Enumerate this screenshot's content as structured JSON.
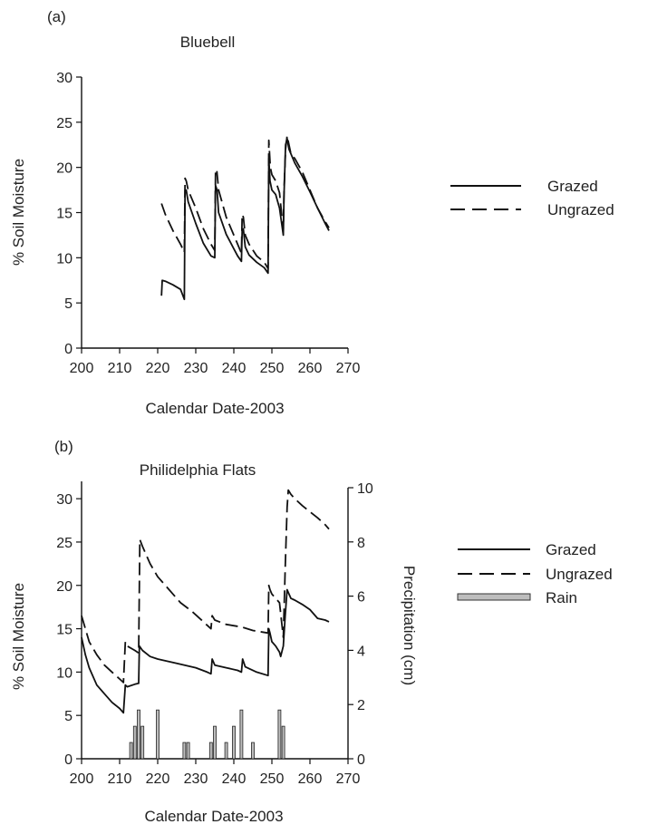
{
  "chart_data": [
    {
      "type": "line",
      "panel": "(a)",
      "title": "Bluebell",
      "xlabel": "Calendar Date-2003",
      "ylabel": "% Soil Moisture",
      "xlim": [
        200,
        270
      ],
      "ylim": [
        0,
        30
      ],
      "xticks": [
        200,
        210,
        220,
        230,
        240,
        250,
        260,
        270
      ],
      "yticks": [
        0,
        5,
        10,
        15,
        20,
        25,
        30
      ],
      "legend_position": "right",
      "grid": false,
      "series": [
        {
          "name": "Grazed",
          "style": "solid",
          "x": [
            221,
            221.2,
            222,
            224,
            226,
            227,
            227.2,
            227.5,
            228,
            230,
            232,
            234,
            235,
            235.2,
            235.6,
            236,
            238,
            240,
            241,
            242,
            242.2,
            242.5,
            243,
            244,
            246,
            248,
            249,
            249.2,
            249.5,
            250,
            251,
            252,
            253,
            253.2,
            253.6,
            254,
            254.5,
            255,
            256,
            258,
            260,
            262,
            264,
            265
          ],
          "y": [
            5.8,
            7.5,
            7.4,
            7.0,
            6.5,
            5.4,
            17.5,
            17.5,
            16.2,
            13.8,
            11.6,
            10.2,
            10.0,
            18.0,
            17.5,
            15.0,
            12.6,
            11.0,
            10.2,
            9.6,
            13.0,
            13.2,
            11.2,
            10.3,
            9.5,
            8.9,
            8.3,
            21.0,
            18.5,
            17.5,
            17.0,
            15.5,
            12.5,
            17.0,
            22.5,
            23.2,
            22.0,
            21.5,
            20.5,
            19.0,
            17.3,
            15.5,
            13.8,
            13.0
          ]
        },
        {
          "name": "Ungrazed",
          "style": "dashed",
          "x": [
            221,
            222,
            224,
            226,
            227,
            227.2,
            227.5,
            228,
            230,
            232,
            234,
            235,
            235.2,
            235.5,
            236,
            238,
            240,
            241,
            242,
            242.2,
            242.5,
            243,
            244,
            246,
            248,
            249,
            249.2,
            249.6,
            250,
            251,
            252,
            253,
            253.2,
            253.6,
            254,
            254.5,
            255,
            256,
            258,
            260,
            262,
            264,
            265
          ],
          "y": [
            16.0,
            14.8,
            13.0,
            11.5,
            10.6,
            18.8,
            18.5,
            17.5,
            15.5,
            13.2,
            11.5,
            10.8,
            19.5,
            19.8,
            17.5,
            14.5,
            12.5,
            11.5,
            10.5,
            14.8,
            14.5,
            12.5,
            11.5,
            10.2,
            9.5,
            8.8,
            23.0,
            20.0,
            19.2,
            18.5,
            17.2,
            13.0,
            17.5,
            22.0,
            23.5,
            22.5,
            21.5,
            21.0,
            19.5,
            17.5,
            15.5,
            14.0,
            13.3
          ]
        }
      ]
    },
    {
      "type": "line",
      "panel": "(b)",
      "title": "Philidelphia Flats",
      "xlabel": "Calendar Date-2003",
      "ylabel": "% Soil Moisture",
      "y2label": "Precipitation (cm)",
      "xlim": [
        200,
        270
      ],
      "ylim": [
        0,
        32
      ],
      "y2lim": [
        0,
        10
      ],
      "xticks": [
        200,
        210,
        220,
        230,
        240,
        250,
        260,
        270
      ],
      "yticks": [
        0,
        5,
        10,
        15,
        20,
        25,
        30
      ],
      "y2ticks": [
        0,
        2,
        4,
        6,
        8,
        10
      ],
      "legend_position": "right",
      "grid": false,
      "series": [
        {
          "name": "Grazed",
          "style": "solid",
          "x": [
            200,
            201,
            202,
            204,
            206,
            208,
            210,
            211,
            211.5,
            212,
            214,
            215,
            215.2,
            216,
            218,
            220,
            225,
            230,
            233,
            234,
            234.3,
            235,
            238,
            241,
            242,
            242.3,
            243,
            246,
            249,
            249.2,
            249.5,
            250,
            251,
            252,
            252.3,
            253,
            253.5,
            254,
            255,
            256,
            258,
            260,
            262,
            264,
            265
          ],
          "y": [
            14.0,
            12.0,
            10.5,
            8.5,
            7.5,
            6.5,
            5.8,
            5.3,
            8.5,
            8.3,
            8.6,
            8.7,
            13.0,
            12.5,
            11.8,
            11.5,
            11.0,
            10.5,
            10.0,
            9.8,
            11.5,
            10.8,
            10.5,
            10.2,
            10.0,
            11.5,
            10.6,
            10.0,
            9.6,
            15.0,
            14.5,
            13.5,
            13.0,
            12.3,
            11.8,
            13.0,
            16.5,
            19.5,
            18.5,
            18.3,
            17.8,
            17.2,
            16.2,
            16.0,
            15.8
          ]
        },
        {
          "name": "Ungrazed",
          "style": "dashed",
          "x": [
            200,
            201,
            202,
            204,
            206,
            208,
            210,
            211,
            211.5,
            212,
            214,
            215,
            215.3,
            216,
            218,
            220,
            223,
            226,
            229,
            232,
            234,
            234.3,
            235,
            238,
            242,
            245,
            249,
            249.2,
            249.5,
            250,
            251,
            252,
            253,
            253.5,
            254,
            254.3,
            255,
            256,
            258,
            260,
            262,
            264,
            265
          ],
          "y": [
            16.5,
            15.0,
            13.5,
            12.0,
            10.8,
            10.0,
            9.2,
            8.8,
            13.5,
            13.0,
            12.5,
            12.2,
            25.3,
            24.5,
            22.5,
            21.0,
            19.5,
            18.0,
            17.0,
            15.8,
            15.0,
            16.5,
            16.0,
            15.5,
            15.2,
            14.8,
            14.5,
            20.0,
            19.5,
            19.0,
            18.5,
            18.0,
            14.0,
            22.0,
            29.0,
            31.0,
            30.5,
            30.0,
            29.2,
            28.5,
            27.8,
            27.0,
            26.5
          ]
        }
      ],
      "rain": {
        "name": "Rain",
        "day": [
          213,
          214,
          215,
          216,
          220,
          227,
          228,
          234,
          235,
          238,
          240,
          242,
          245,
          252,
          253
        ],
        "cm": [
          0.6,
          1.2,
          1.8,
          1.2,
          1.8,
          0.6,
          0.6,
          0.6,
          1.2,
          0.6,
          1.2,
          1.8,
          0.6,
          1.8,
          1.2
        ]
      }
    }
  ]
}
